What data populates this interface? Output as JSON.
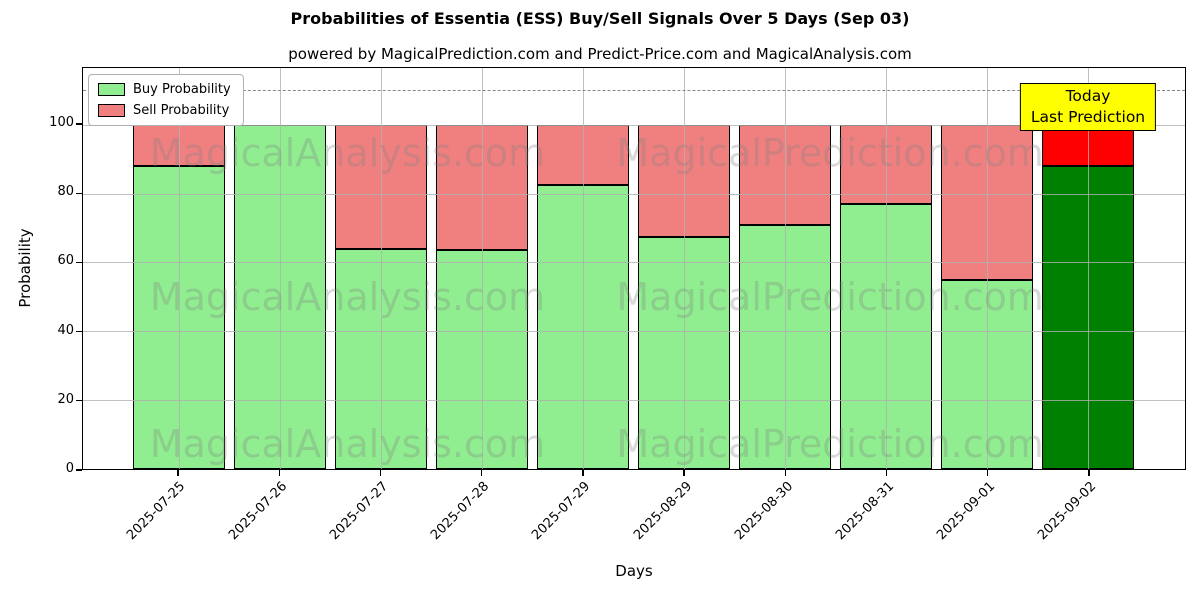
{
  "chart_data": {
    "type": "bar",
    "stacked": true,
    "title": "Probabilities of Essentia (ESS) Buy/Sell Signals Over 5 Days (Sep 03)",
    "subtitle": "powered by MagicalPrediction.com and Predict-Price.com and MagicalAnalysis.com",
    "xlabel": "Days",
    "ylabel": "Probability",
    "categories": [
      "2025-07-25",
      "2025-07-26",
      "2025-07-27",
      "2025-07-28",
      "2025-07-29",
      "2025-08-29",
      "2025-08-30",
      "2025-08-31",
      "2025-09-01",
      "2025-09-02"
    ],
    "series": [
      {
        "name": "Buy Probability",
        "color": "#90EE90",
        "values": [
          88,
          100,
          64,
          63.5,
          82.5,
          67.5,
          71,
          77,
          55,
          88
        ]
      },
      {
        "name": "Sell Probability",
        "color": "#F08080",
        "values": [
          12,
          0,
          36,
          36.5,
          17.5,
          32.5,
          29,
          23,
          45,
          12
        ]
      }
    ],
    "today": {
      "index": 9,
      "date": "2025-09-02",
      "buy_color": "#008000",
      "sell_color": "#FF0000"
    },
    "annotation": {
      "lines": [
        "Today",
        "Last Prediction"
      ],
      "bg": "#FFFF00"
    },
    "dashed_line_y": 110,
    "yticks": [
      0,
      20,
      40,
      60,
      80,
      100
    ],
    "ylim": [
      0,
      116.5
    ],
    "grid": true,
    "legend_position": "upper left",
    "bar_edge_color": "#000000",
    "watermarks": [
      "MagicalAnalysis.com",
      "MagicalPrediction.com"
    ]
  }
}
